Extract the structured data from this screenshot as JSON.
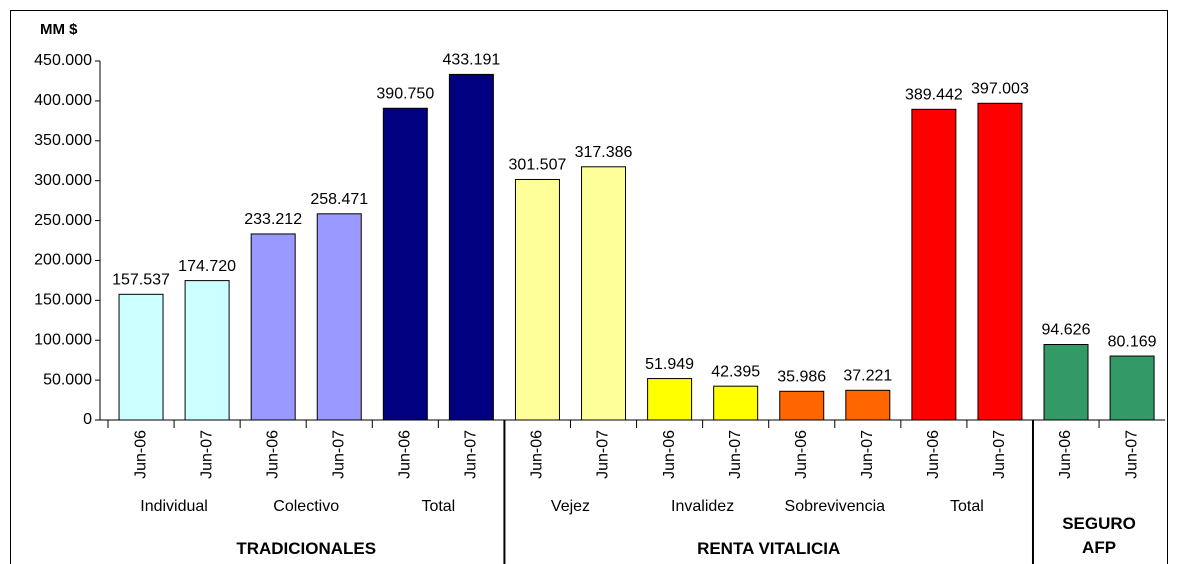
{
  "chart_data": {
    "type": "bar",
    "y_label": "MM $",
    "categories": [
      "Jun-06",
      "Jun-07",
      "Jun-06",
      "Jun-07",
      "Jun-06",
      "Jun-07",
      "Jun-06",
      "Jun-07",
      "Jun-06",
      "Jun-07",
      "Jun-06",
      "Jun-07",
      "Jun-06",
      "Jun-07",
      "Jun-06",
      "Jun-07"
    ],
    "values": [
      157537,
      174720,
      233212,
      258471,
      390750,
      433191,
      301507,
      317386,
      51949,
      42395,
      35986,
      37221,
      389442,
      397003,
      94626,
      80169
    ],
    "value_labels": [
      "157.537",
      "174.720",
      "233.212",
      "258.471",
      "390.750",
      "433.191",
      "301.507",
      "317.386",
      "51.949",
      "42.395",
      "35.986",
      "37.221",
      "389.442",
      "397.003",
      "94.626",
      "80.169"
    ],
    "colors": [
      "#ccffff",
      "#ccffff",
      "#9999ff",
      "#9999ff",
      "#000080",
      "#000080",
      "#ffff99",
      "#ffff99",
      "#ffff00",
      "#ffff00",
      "#ff6600",
      "#ff6600",
      "#ff0000",
      "#ff0000",
      "#339966",
      "#339966"
    ],
    "groups": [
      {
        "name": "TRADICIONALES",
        "subgroups": [
          "Individual",
          "Colectivo",
          "Total"
        ]
      },
      {
        "name": "RENTA VITALICIA",
        "subgroups": [
          "Vejez",
          "Invalidez",
          "Sobrevivencia",
          "Total"
        ]
      },
      {
        "name": "SEGURO AFP",
        "subgroups": [
          null
        ]
      }
    ],
    "ylim": [
      0,
      450000
    ],
    "yticks": [
      0,
      {
        "value": 50000,
        "label": "50.000"
      },
      {
        "value": 100000,
        "label": "100.000"
      },
      {
        "value": 150000,
        "label": "150.000"
      },
      {
        "value": 200000,
        "label": "200.000"
      },
      {
        "value": 250000,
        "label": "250.000"
      },
      {
        "value": 300000,
        "label": "300.000"
      },
      {
        "value": 350000,
        "label": "350.000"
      },
      {
        "value": 400000,
        "label": "400.000"
      },
      {
        "value": 450000,
        "label": "450.000"
      }
    ],
    "grid": false
  }
}
